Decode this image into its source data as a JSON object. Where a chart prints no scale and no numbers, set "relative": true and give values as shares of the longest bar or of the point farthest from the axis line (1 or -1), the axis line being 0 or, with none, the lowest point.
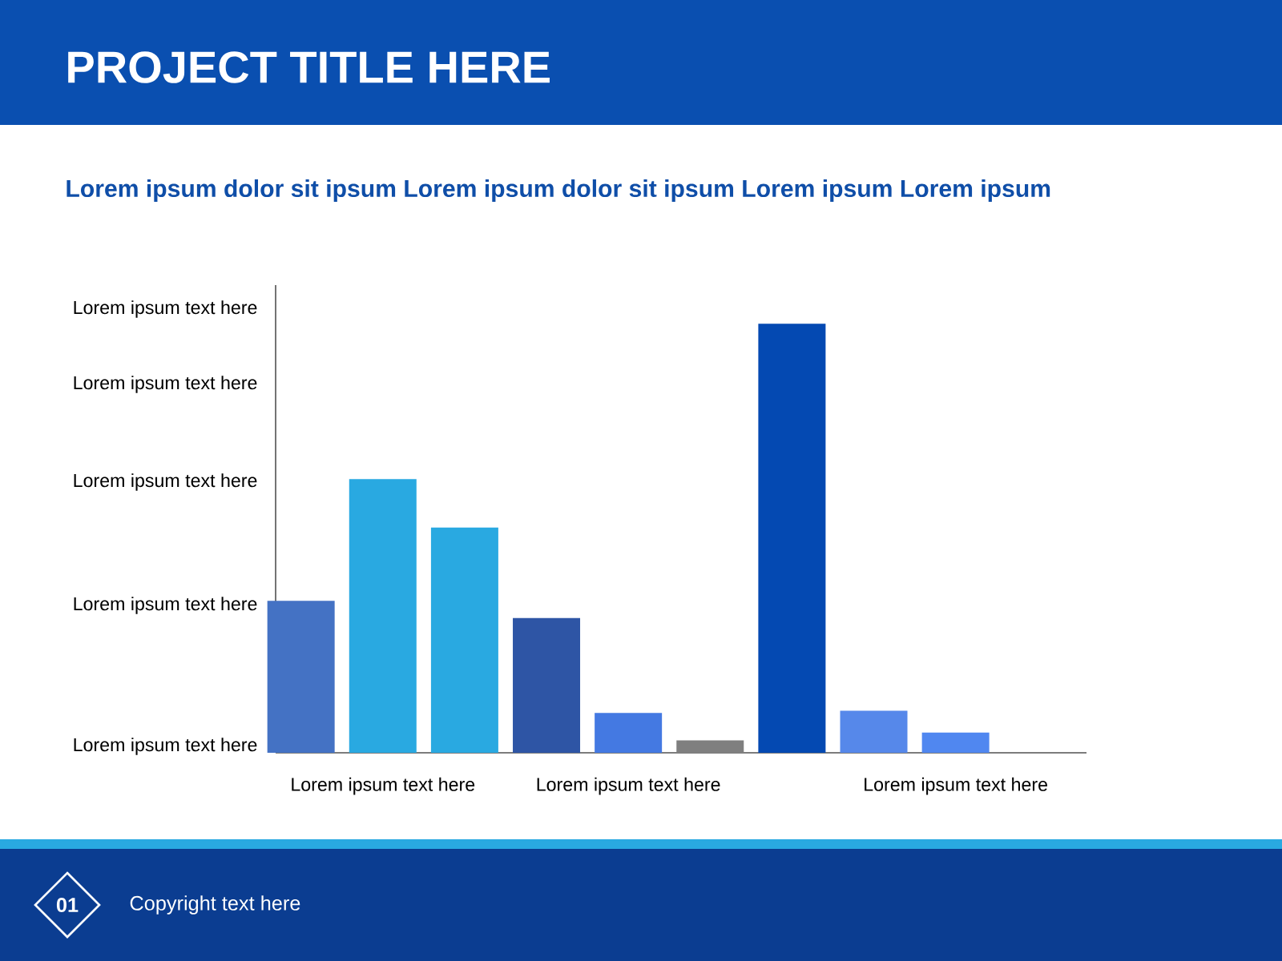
{
  "chart_data": {
    "type": "bar",
    "title": "PROJECT TITLE HERE",
    "subtitle": "Lorem ipsum dolor sit ipsum Lorem ipsum dolor sit ipsum Lorem ipsum Lorem ipsum",
    "relative": true,
    "categories": [
      null,
      "Lorem ipsum text here",
      null,
      null,
      "Lorem ipsum text here",
      null,
      null,
      null,
      "Lorem ipsum text here"
    ],
    "values": [
      0.354,
      0.638,
      0.525,
      0.314,
      0.093,
      0.029,
      1,
      0.098,
      0.047
    ],
    "colors": [
      "#4472c4",
      "#29a9e1",
      "#29a9e1",
      "#2e55a5",
      "#4479e2",
      "#7f7f7f",
      "#0449b2",
      "#5688ea",
      "#5087f0"
    ],
    "annotations": [
      "Lorem ipsum text here",
      "Lorem ipsum text here",
      "Lorem ipsum text here",
      "Lorem ipsum text here",
      "Lorem ipsum text here",
      "01",
      "Copyright text here"
    ]
  }
}
